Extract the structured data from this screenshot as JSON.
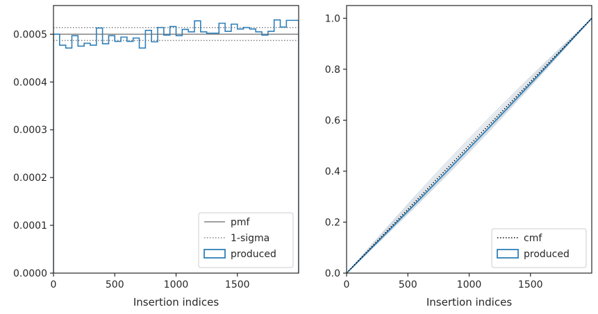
{
  "chart_data": [
    {
      "type": "step",
      "xlabel": "Insertion indices",
      "ylabel": "",
      "xlim": [
        0,
        2000
      ],
      "ylim": [
        0,
        0.00056
      ],
      "xticks": [
        0,
        500,
        1000,
        1500
      ],
      "xtick_labels": [
        "0",
        "500",
        "1000",
        "1500"
      ],
      "yticks": [
        0,
        0.0001,
        0.0002,
        0.0003,
        0.0004,
        0.0005
      ],
      "ytick_labels": [
        "0.0000",
        "0.0001",
        "0.0002",
        "0.0003",
        "0.0004",
        "0.0005"
      ],
      "pmf": 0.0005,
      "sigma_upper": 0.000514,
      "sigma_lower": 0.000487,
      "bin_width": 50,
      "histogram_values": [
        0.0005,
        0.000477,
        0.000471,
        0.000497,
        0.000475,
        0.000481,
        0.000477,
        0.000513,
        0.00048,
        0.000497,
        0.000485,
        0.000494,
        0.000485,
        0.000492,
        0.000471,
        0.000508,
        0.000484,
        0.000514,
        0.000498,
        0.000516,
        0.000497,
        0.00051,
        0.000505,
        0.000528,
        0.000505,
        0.000502,
        0.000502,
        0.000523,
        0.000506,
        0.000521,
        0.000511,
        0.000514,
        0.000511,
        0.000505,
        0.000498,
        0.000506,
        0.00053,
        0.000515,
        0.000529,
        0.000529
      ],
      "legend": {
        "location": "lower right",
        "entries": [
          {
            "label": "pmf",
            "style": "solid-gray"
          },
          {
            "label": "1-sigma",
            "style": "dotted-gray"
          },
          {
            "label": "produced",
            "style": "blue-box"
          }
        ]
      },
      "colors": {
        "produced": "#2f7fb8",
        "pmf": "#808080",
        "sigma": "#808080"
      }
    },
    {
      "type": "line",
      "xlabel": "Insertion indices",
      "ylabel": "",
      "xlim": [
        0,
        2000
      ],
      "ylim": [
        0,
        1.05
      ],
      "xticks": [
        0,
        500,
        1000,
        1500
      ],
      "xtick_labels": [
        "0",
        "500",
        "1000",
        "1500"
      ],
      "yticks": [
        0,
        0.2,
        0.4,
        0.6,
        0.8,
        1.0
      ],
      "ytick_labels": [
        "0.0",
        "0.2",
        "0.4",
        "0.6",
        "0.8",
        "1.0"
      ],
      "cmf": {
        "x": [
          0,
          2000
        ],
        "y": [
          0,
          1.0
        ]
      },
      "background_deviations": [
        0.02,
        -0.025,
        0.012,
        -0.015,
        0.028,
        -0.008,
        0.005,
        -0.02
      ],
      "produced_deviation": -0.01,
      "legend": {
        "location": "lower right",
        "entries": [
          {
            "label": "cmf",
            "style": "dotted-black"
          },
          {
            "label": "produced",
            "style": "blue-box"
          }
        ]
      },
      "colors": {
        "produced": "#2f7fb8",
        "cmf": "#000000",
        "background": "#c9d3dc"
      }
    }
  ]
}
